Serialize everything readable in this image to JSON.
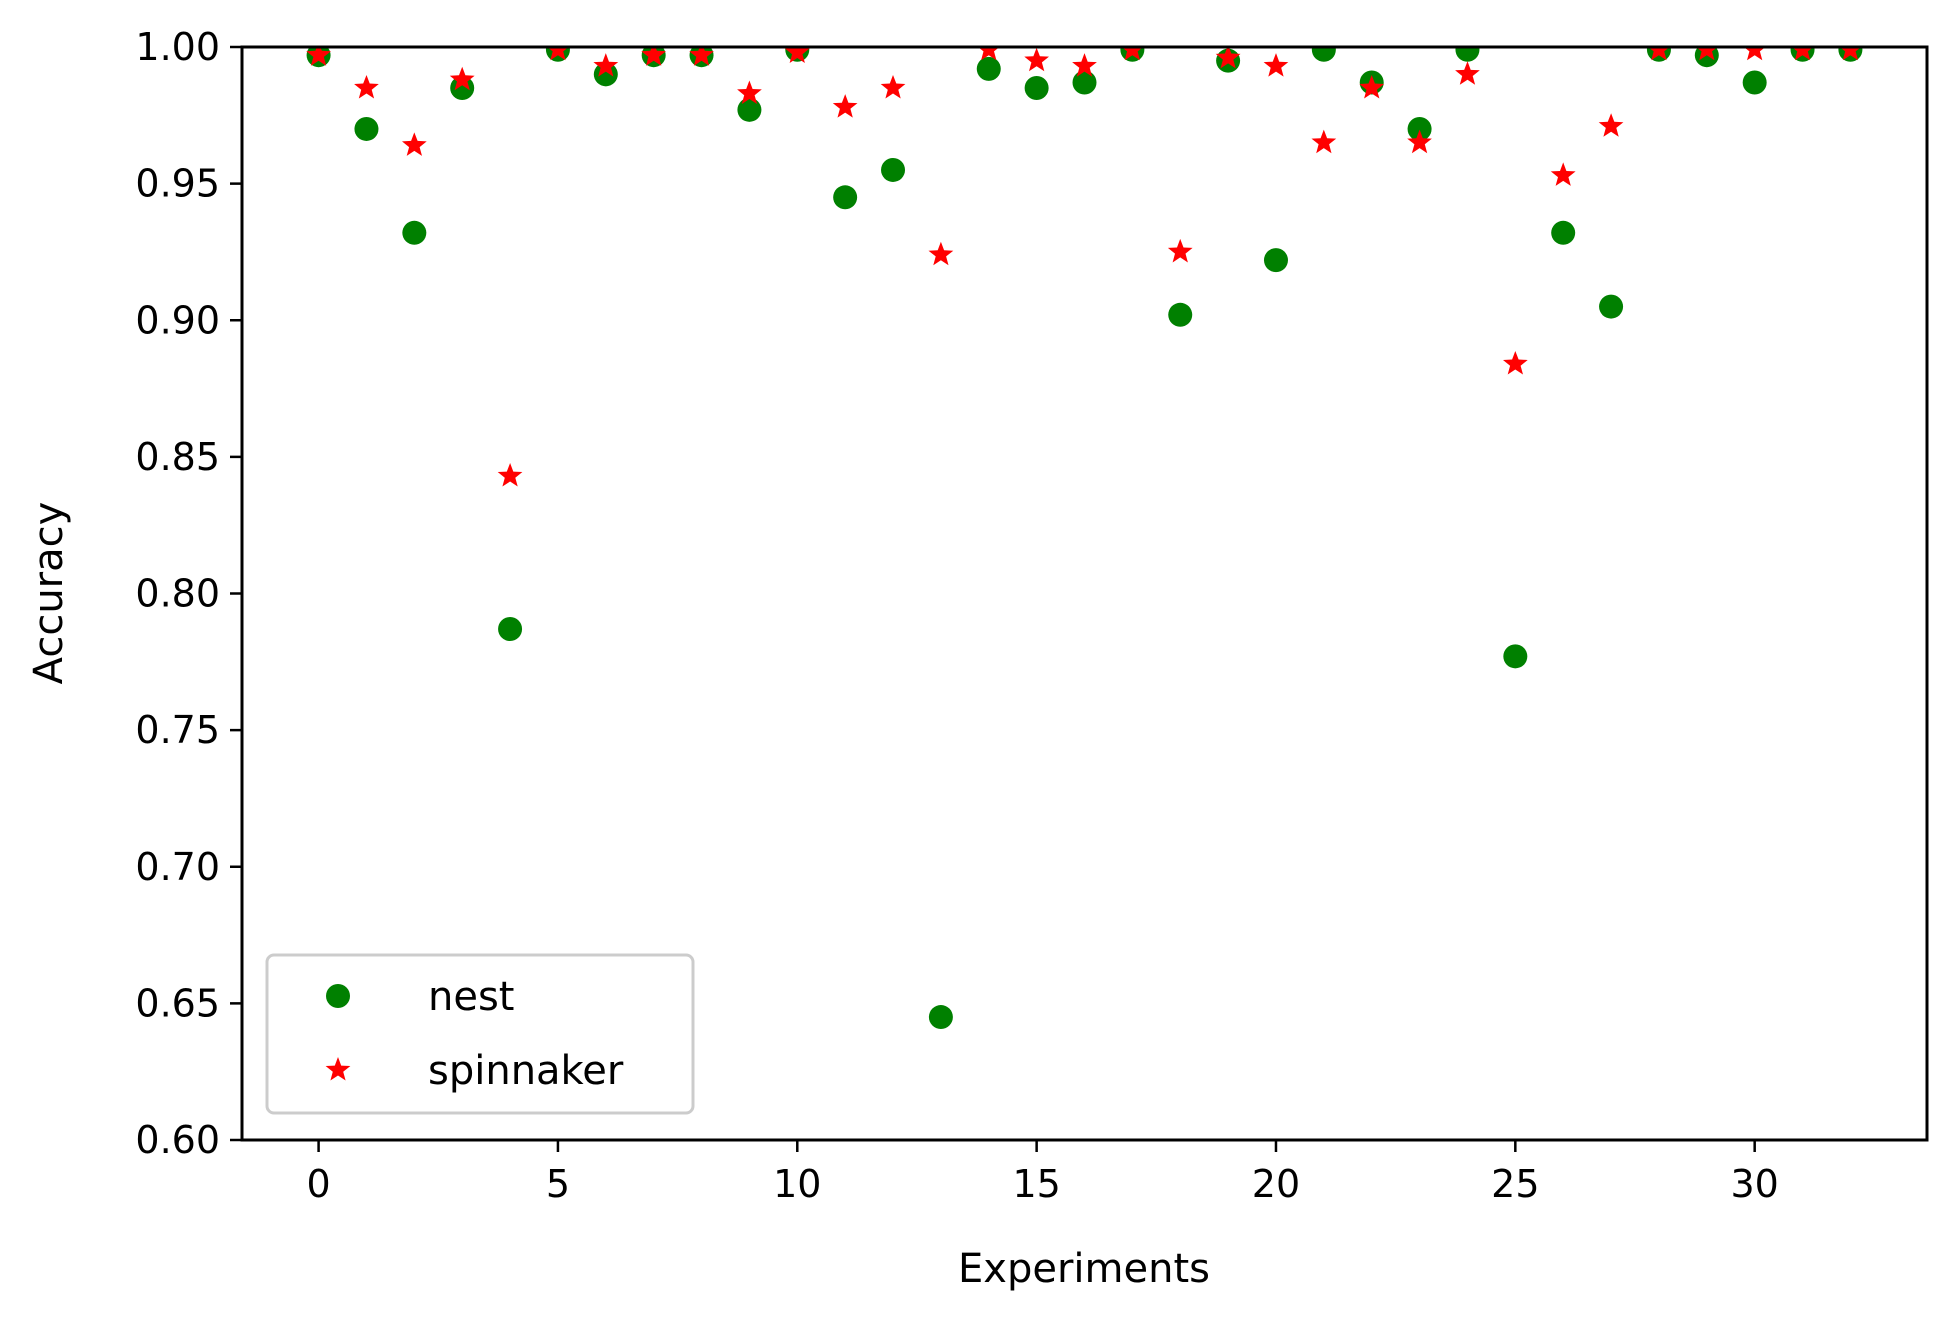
{
  "chart_data": {
    "type": "scatter",
    "xlabel": "Experiments",
    "ylabel": "Accuracy",
    "xlim": [
      -1.6,
      33.6
    ],
    "ylim": [
      0.6,
      1.0
    ],
    "xticks": [
      0,
      5,
      10,
      15,
      20,
      25,
      30
    ],
    "yticks": [
      0.6,
      0.65,
      0.7,
      0.75,
      0.8,
      0.85,
      0.9,
      0.95,
      1.0
    ],
    "ytick_labels": [
      "0.60",
      "0.65",
      "0.70",
      "0.75",
      "0.80",
      "0.85",
      "0.90",
      "0.95",
      "1.00"
    ],
    "grid": false,
    "legend_position": "lower-left",
    "x": [
      0,
      1,
      2,
      3,
      4,
      5,
      6,
      7,
      8,
      9,
      10,
      11,
      12,
      13,
      14,
      15,
      16,
      17,
      18,
      19,
      20,
      21,
      22,
      23,
      24,
      25,
      26,
      27,
      28,
      29,
      30,
      31,
      32
    ],
    "series": [
      {
        "name": "nest",
        "marker": "circle",
        "color": "#008000",
        "values": [
          0.997,
          0.97,
          0.932,
          0.985,
          0.787,
          0.999,
          0.99,
          0.997,
          0.997,
          0.977,
          0.999,
          0.945,
          0.955,
          0.645,
          0.992,
          0.985,
          0.987,
          0.999,
          0.902,
          0.995,
          0.922,
          0.999,
          0.987,
          0.97,
          0.999,
          0.777,
          0.932,
          0.905,
          0.999,
          0.997,
          0.987,
          0.999,
          0.999
        ]
      },
      {
        "name": "spinnaker",
        "marker": "star",
        "color": "#ff0000",
        "values": [
          0.997,
          0.985,
          0.964,
          0.988,
          0.843,
          0.999,
          0.993,
          0.997,
          0.997,
          0.983,
          0.998,
          0.978,
          0.985,
          0.924,
          0.999,
          0.995,
          0.993,
          0.999,
          0.925,
          0.996,
          0.993,
          0.965,
          0.985,
          0.965,
          0.99,
          0.884,
          0.953,
          0.971,
          0.999,
          0.999,
          0.999,
          0.999,
          0.999
        ]
      }
    ]
  }
}
